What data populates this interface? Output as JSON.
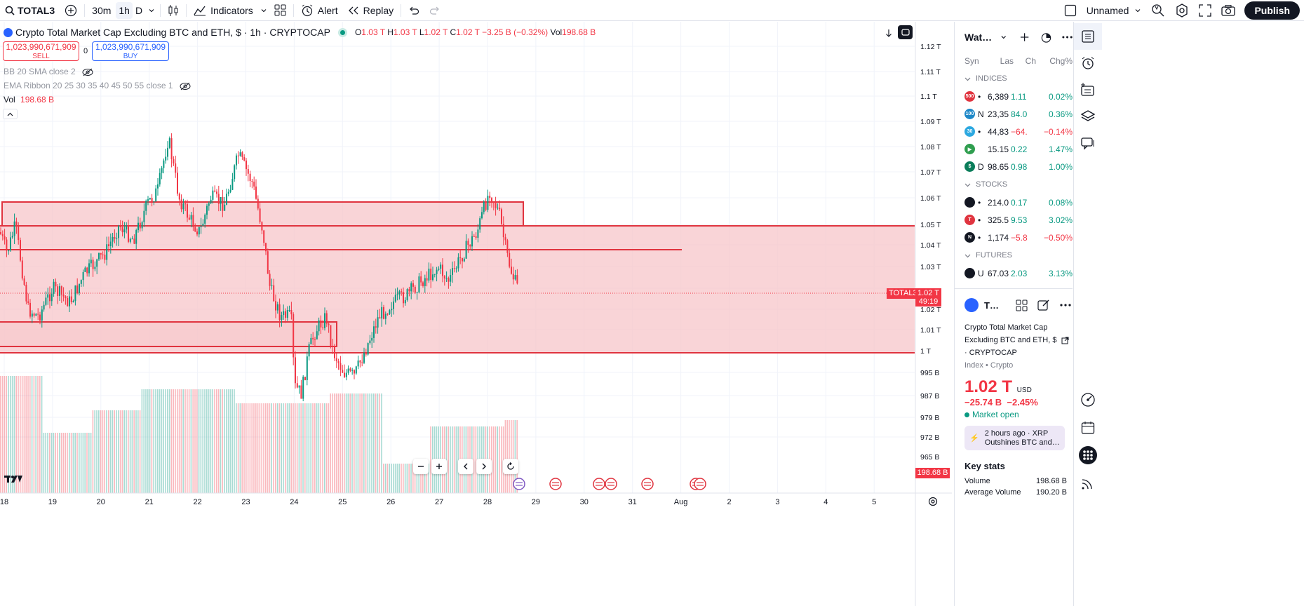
{
  "toolbar": {
    "symbol": "TOTAL3",
    "intervals": [
      "30m",
      "1h",
      "D"
    ],
    "indicators_label": "Indicators",
    "alert_label": "Alert",
    "replay_label": "Replay",
    "layout_name": "Unnamed",
    "publish_label": "Publish"
  },
  "chart": {
    "title": "Crypto Total Market Cap Excluding BTC and ETH, $ · 1h · CRYPTOCAP",
    "ohlc": {
      "o_label": "O",
      "o": "1.03 T",
      "h_label": "H",
      "h": "1.03 T",
      "l_label": "L",
      "l": "1.02 T",
      "c_label": "C",
      "c": "1.02 T",
      "change": "−3.25 B (−0.32%)",
      "vol_label": "Vol",
      "vol": "198.68 B"
    },
    "sell_price": "1,023,990,671,909",
    "sell_label": "SELL",
    "spread": "0",
    "buy_price": "1,023,990,671,909",
    "buy_label": "BUY",
    "ind_bb": "BB 20 SMA close 2",
    "ind_ema": "EMA Ribbon 20 25 30 35 40 45 50 55 close 1",
    "vol_name": "Vol",
    "vol_value": "198.68 B",
    "price_axis": [
      "1.12 T",
      "1.11 T",
      "1.1 T",
      "1.09 T",
      "1.08 T",
      "1.07 T",
      "1.06 T",
      "1.05 T",
      "1.04 T",
      "1.03 T",
      "1.02 T",
      "1.01 T",
      "1 T",
      "995 B",
      "987 B",
      "979 B",
      "972 B",
      "965 B"
    ],
    "time_axis": [
      "18",
      "19",
      "20",
      "21",
      "22",
      "23",
      "24",
      "25",
      "26",
      "27",
      "28",
      "29",
      "30",
      "31",
      "Aug",
      "2",
      "3",
      "4",
      "5"
    ],
    "last_tag_symbol": "TOTAL3",
    "last_tag_price": "1.02 T",
    "last_tag_timer": "49:19",
    "vol_tag": "198.68 B",
    "colors": {
      "up": "#089981",
      "down": "#f23645",
      "zone_fill": "#f7c5ca",
      "zone_line": "#e0343f"
    }
  },
  "watchlist": {
    "title": "Wat…",
    "cols": [
      "Syn",
      "Las",
      "Ch",
      "Chg%"
    ],
    "sections": [
      {
        "name": "INDICES",
        "rows": [
          {
            "badge": "500",
            "badge_color": "#e0343f",
            "sym": "•",
            "last": "6,389",
            "ch": "1.11",
            "chp": "0.02%",
            "dir": "up"
          },
          {
            "badge": "100",
            "badge_color": "#1e88c8",
            "sym": "N",
            "last": "23,35",
            "ch": "84.0",
            "chp": "0.36%",
            "dir": "up"
          },
          {
            "badge": "30",
            "badge_color": "#2ca8e0",
            "sym": "•",
            "last": "44,83",
            "ch": "−64.",
            "chp": "−0.14%",
            "dir": "down"
          },
          {
            "badge": "▶",
            "badge_color": "#2f9e4f",
            "sym": "",
            "last": "15.15",
            "ch": "0.22",
            "chp": "1.47%",
            "dir": "up"
          },
          {
            "badge": "$",
            "badge_color": "#0b7d5a",
            "sym": "D",
            "last": "98.65",
            "ch": "0.98",
            "chp": "1.00%",
            "dir": "up"
          }
        ]
      },
      {
        "name": "STOCKS",
        "rows": [
          {
            "badge": "",
            "badge_color": "#131722",
            "sym": "•",
            "last": "214.0",
            "ch": "0.17",
            "chp": "0.08%",
            "dir": "up"
          },
          {
            "badge": "T",
            "badge_color": "#e0343f",
            "sym": "•",
            "last": "325.5",
            "ch": "9.53",
            "chp": "3.02%",
            "dir": "up"
          },
          {
            "badge": "N",
            "badge_color": "#131722",
            "sym": "•",
            "last": "1,174",
            "ch": "−5.8",
            "chp": "−0.50%",
            "dir": "down"
          }
        ]
      },
      {
        "name": "FUTURES",
        "rows": [
          {
            "badge": "",
            "badge_color": "#131722",
            "sym": "U",
            "last": "67.03",
            "ch": "2.03",
            "chp": "3.13%",
            "dir": "up"
          }
        ]
      }
    ]
  },
  "details": {
    "short": "T…",
    "name_line1": "Crypto Total Market Cap",
    "name_line2": "Excluding BTC and ETH, $",
    "exchange": "· CRYPTOCAP",
    "category": "Index • Crypto",
    "price": "1.02 T",
    "currency": "USD",
    "change": "−25.74 B  −2.45%",
    "status": "Market open",
    "news_time": "2 hours ago · XRP",
    "news_text": "Outshines BTC and…",
    "key_stats": "Key stats",
    "volume_label": "Volume",
    "volume": "198.68 B",
    "avg_volume_label": "Average Volume",
    "avg_volume": "190.20 B"
  }
}
